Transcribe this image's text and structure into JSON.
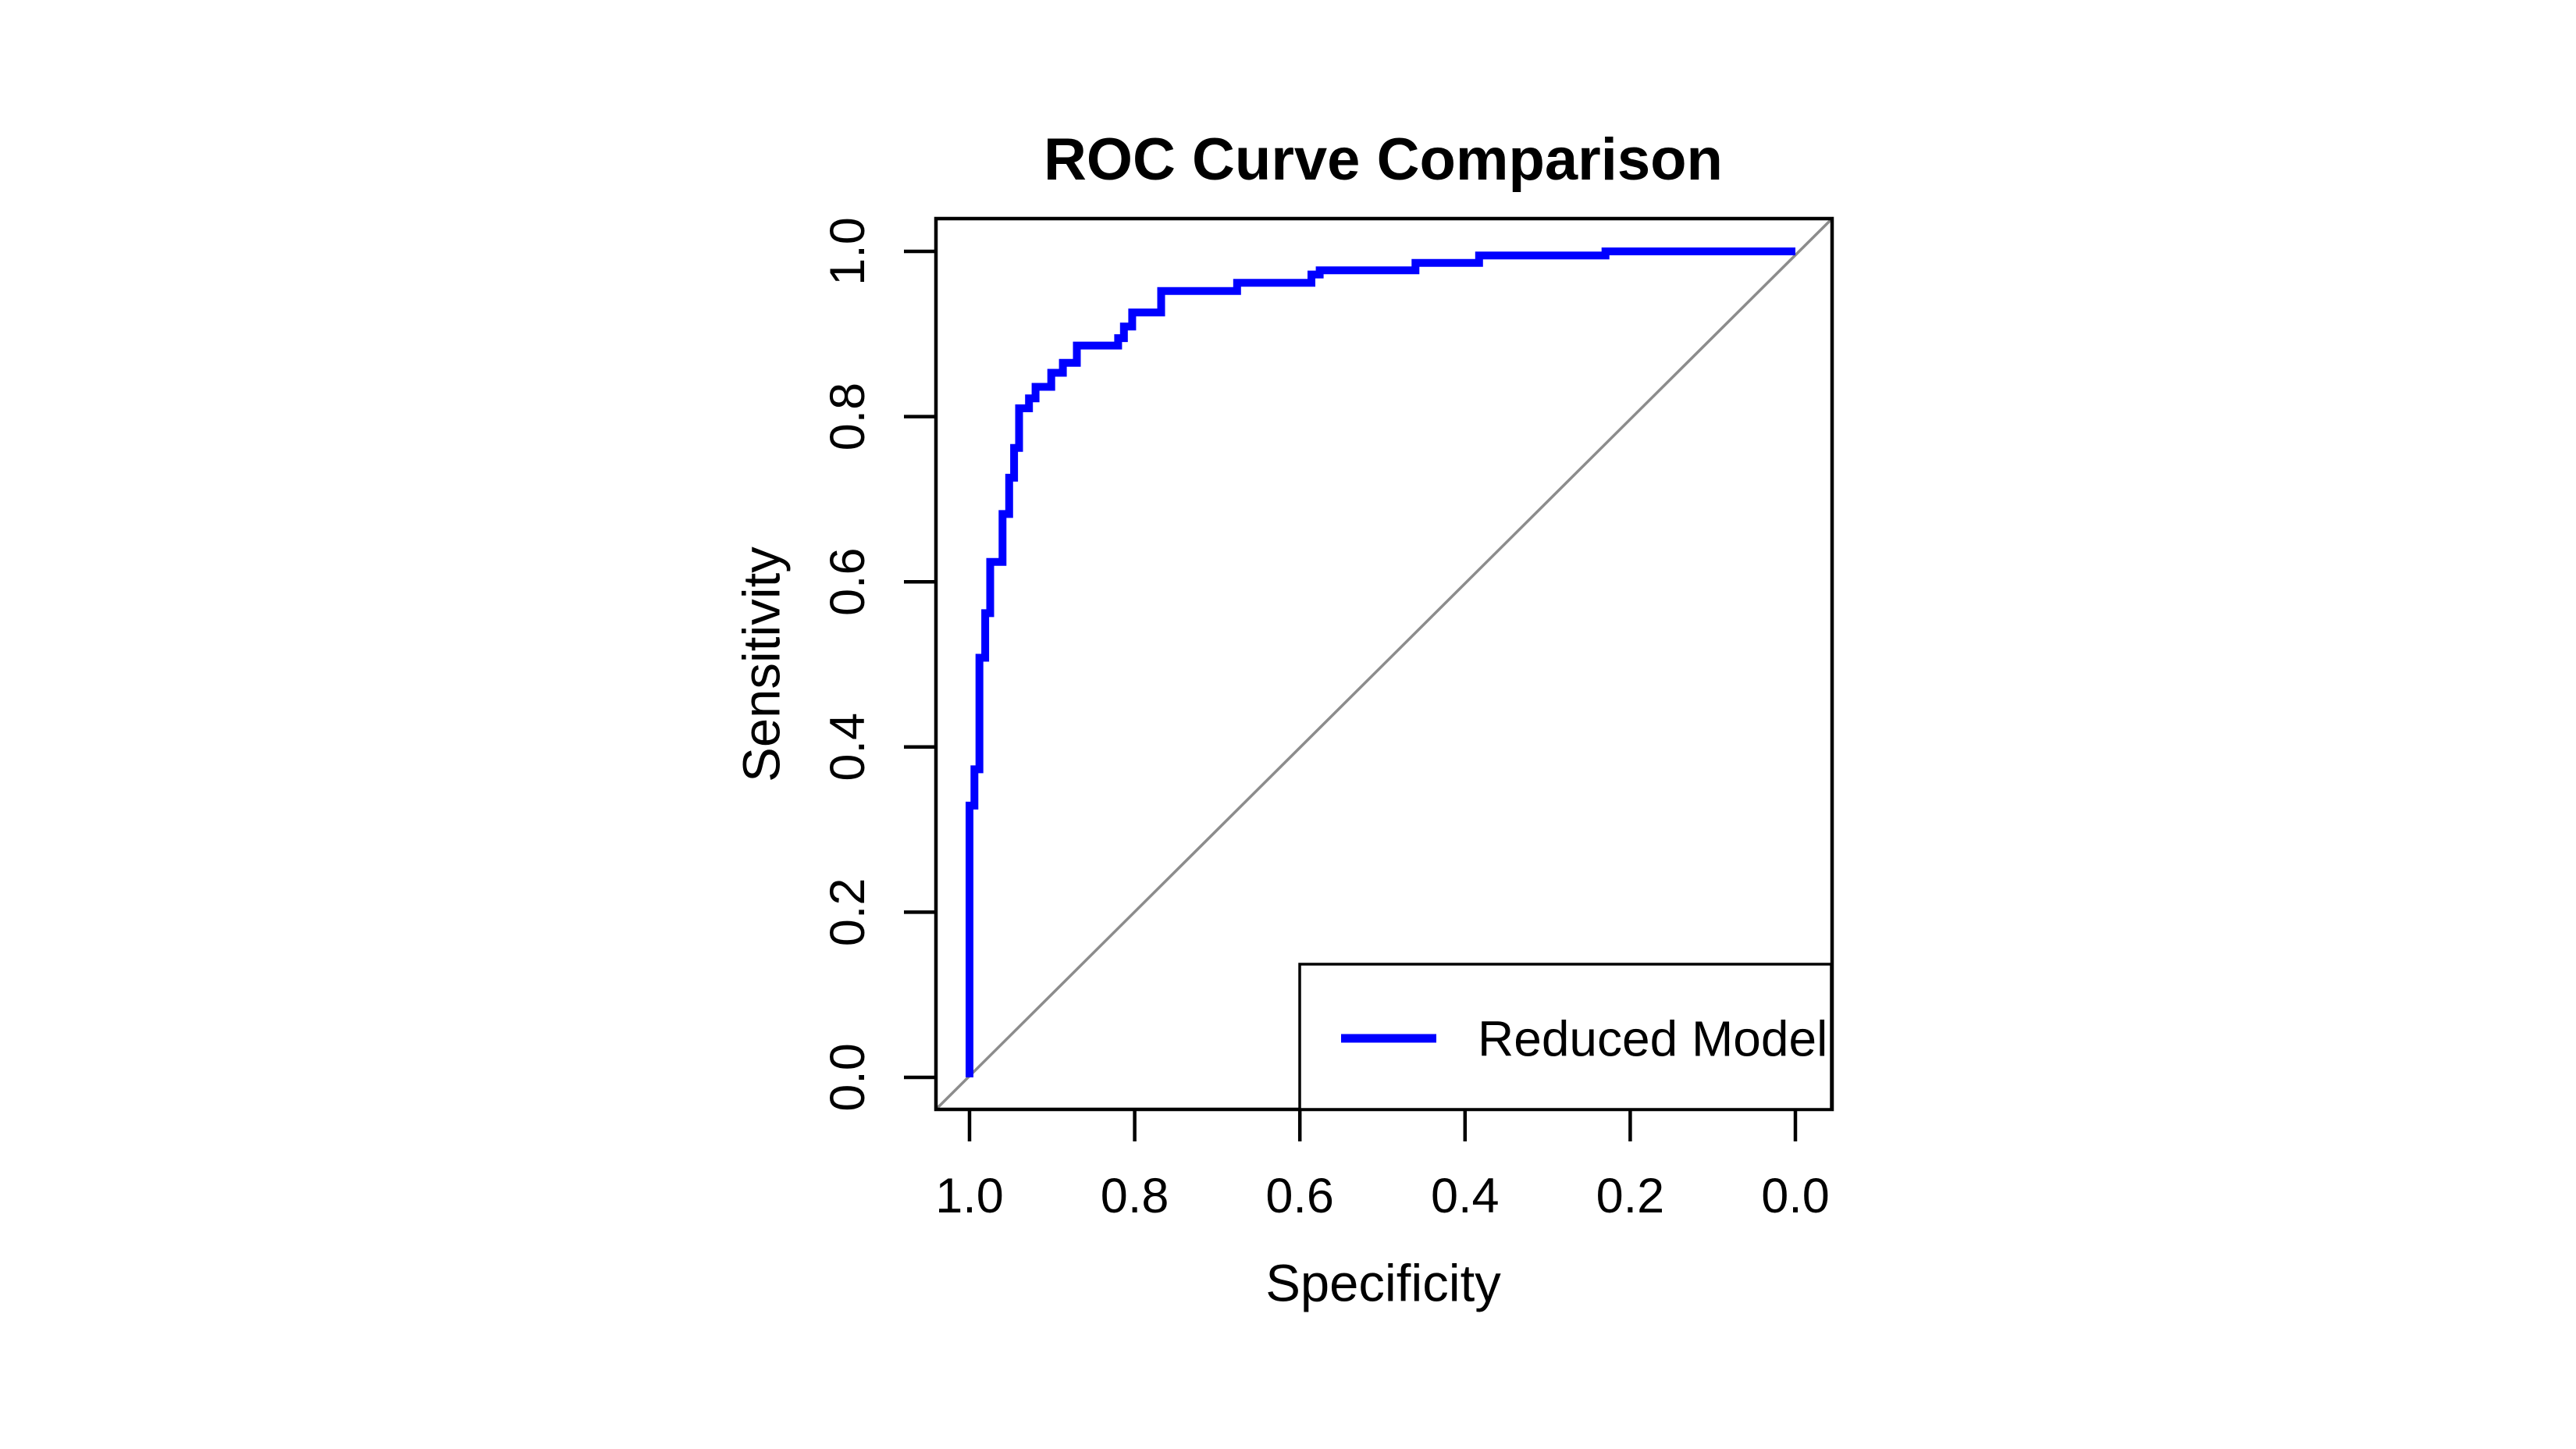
{
  "title": "ROC Curve Comparison",
  "axes": {
    "x_label": "Specificity",
    "y_label": "Sensitivity",
    "x_tick_labels": [
      "1.0",
      "0.8",
      "0.6",
      "0.4",
      "0.2",
      "0.0"
    ],
    "y_tick_labels": [
      "0.0",
      "0.2",
      "0.4",
      "0.6",
      "0.8",
      "1.0"
    ]
  },
  "legend": {
    "items": [
      {
        "label": "Reduced Model",
        "color": "#0000FF"
      }
    ]
  },
  "colors": {
    "curve": "#0000FF",
    "reference_line": "#8C8C8C",
    "frame": "#000000",
    "text": "#000000",
    "background": "#FFFFFF"
  },
  "chart_data": {
    "type": "line",
    "subtype": "roc-step-curve",
    "title": "ROC Curve Comparison",
    "xlabel": "Specificity",
    "ylabel": "Sensitivity",
    "x_axis": {
      "range": [
        1.0,
        0.0
      ],
      "reversed": true,
      "ticks": [
        1.0,
        0.8,
        0.6,
        0.4,
        0.2,
        0.0
      ]
    },
    "y_axis": {
      "range": [
        0.0,
        1.0
      ],
      "ticks": [
        0.0,
        0.2,
        0.4,
        0.6,
        0.8,
        1.0
      ]
    },
    "grid": false,
    "legend_position": "bottom-right",
    "series": [
      {
        "name": "Reduced Model",
        "color": "#0000FF",
        "style": "step",
        "points_format": [
          "specificity",
          "sensitivity"
        ],
        "points": [
          [
            1.0,
            0.0
          ],
          [
            1.0,
            0.329
          ],
          [
            0.994,
            0.329
          ],
          [
            0.994,
            0.373
          ],
          [
            0.988,
            0.373
          ],
          [
            0.988,
            0.508
          ],
          [
            0.981,
            0.508
          ],
          [
            0.981,
            0.562
          ],
          [
            0.975,
            0.562
          ],
          [
            0.975,
            0.624
          ],
          [
            0.96,
            0.624
          ],
          [
            0.96,
            0.682
          ],
          [
            0.952,
            0.682
          ],
          [
            0.952,
            0.726
          ],
          [
            0.946,
            0.726
          ],
          [
            0.946,
            0.762
          ],
          [
            0.94,
            0.762
          ],
          [
            0.94,
            0.81
          ],
          [
            0.928,
            0.81
          ],
          [
            0.928,
            0.822
          ],
          [
            0.92,
            0.822
          ],
          [
            0.92,
            0.836
          ],
          [
            0.901,
            0.836
          ],
          [
            0.901,
            0.853
          ],
          [
            0.887,
            0.853
          ],
          [
            0.887,
            0.865
          ],
          [
            0.87,
            0.865
          ],
          [
            0.87,
            0.886
          ],
          [
            0.82,
            0.886
          ],
          [
            0.82,
            0.895
          ],
          [
            0.813,
            0.895
          ],
          [
            0.813,
            0.909
          ],
          [
            0.803,
            0.909
          ],
          [
            0.803,
            0.926
          ],
          [
            0.768,
            0.926
          ],
          [
            0.768,
            0.952
          ],
          [
            0.676,
            0.952
          ],
          [
            0.676,
            0.962
          ],
          [
            0.586,
            0.962
          ],
          [
            0.586,
            0.972
          ],
          [
            0.576,
            0.972
          ],
          [
            0.576,
            0.977
          ],
          [
            0.46,
            0.977
          ],
          [
            0.46,
            0.986
          ],
          [
            0.383,
            0.986
          ],
          [
            0.383,
            0.995
          ],
          [
            0.23,
            0.995
          ],
          [
            0.23,
            1.0
          ],
          [
            0.0,
            1.0
          ]
        ]
      }
    ],
    "reference_line": {
      "name": "chance-diagonal",
      "from": [
        1.0,
        0.0
      ],
      "to": [
        0.0,
        1.0
      ],
      "color": "#8C8C8C"
    }
  }
}
